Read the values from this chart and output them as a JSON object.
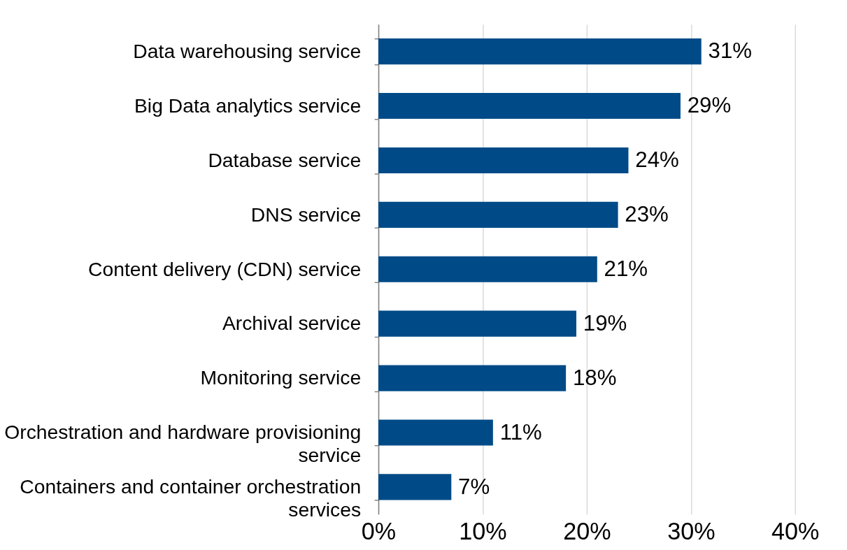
{
  "chart_data": {
    "type": "bar",
    "orientation": "horizontal",
    "categories": [
      "Data warehousing service",
      "Big Data analytics service",
      "Database service",
      "DNS service",
      "Content delivery (CDN) service",
      "Archival service",
      "Monitoring service",
      "Orchestration and hardware provisioning service",
      "Containers and container orchestration services"
    ],
    "values": [
      31,
      29,
      24,
      23,
      21,
      19,
      18,
      11,
      7
    ],
    "value_labels": [
      "31%",
      "29%",
      "24%",
      "23%",
      "21%",
      "19%",
      "18%",
      "11%",
      "7%"
    ],
    "color": "#004b87",
    "xlim": [
      0,
      40
    ],
    "xticks": [
      {
        "value": 0,
        "label": "0%"
      },
      {
        "value": 10,
        "label": "10%"
      },
      {
        "value": 20,
        "label": "20%"
      },
      {
        "value": 30,
        "label": "30%"
      },
      {
        "value": 40,
        "label": "40%"
      }
    ],
    "grid": "x"
  }
}
